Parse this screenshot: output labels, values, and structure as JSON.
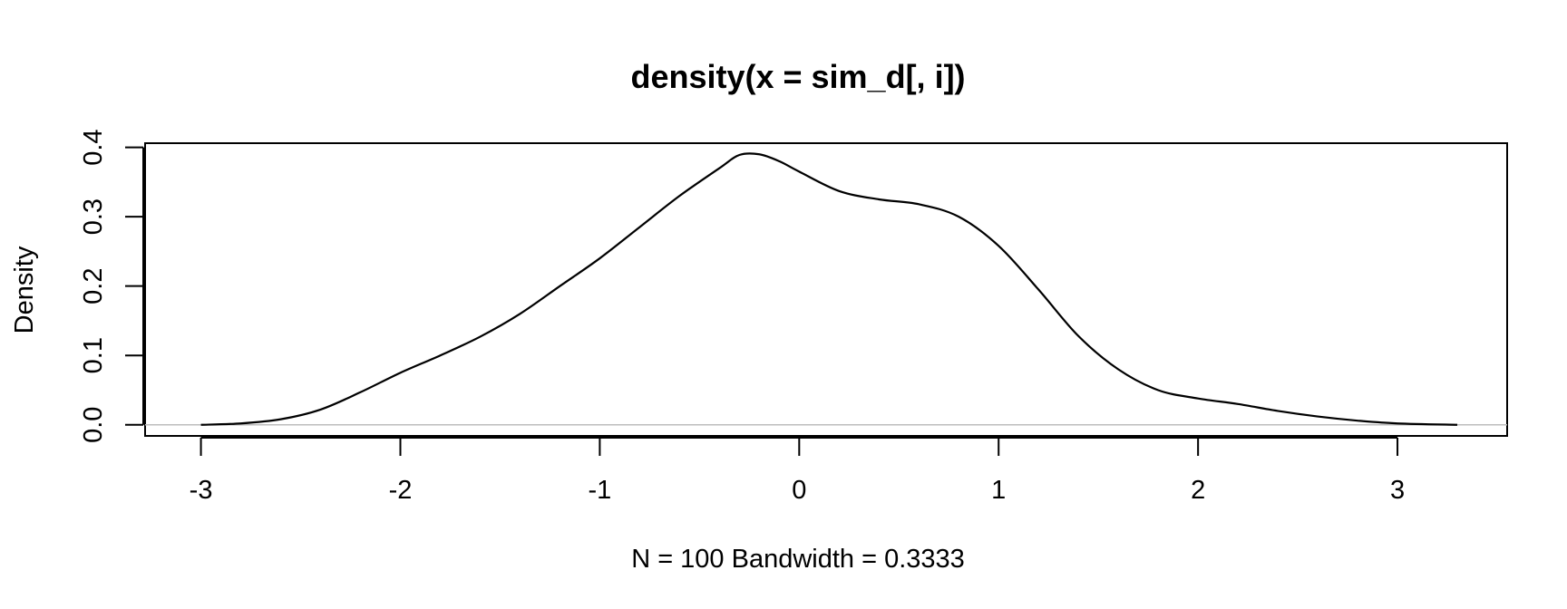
{
  "chart_data": {
    "type": "line",
    "title": "density(x = sim_d[, i])",
    "xlabel": "N = 100   Bandwidth = 0.3333",
    "ylabel": "Density",
    "xlim": [
      -3.28,
      3.55
    ],
    "ylim": [
      -0.016,
      0.406
    ],
    "x_ticks": [
      -3,
      -2,
      -1,
      0,
      1,
      2,
      3
    ],
    "y_ticks": [
      0.0,
      0.1,
      0.2,
      0.3,
      0.4
    ],
    "x_tick_labels": [
      "-3",
      "-2",
      "-1",
      "0",
      "1",
      "2",
      "3"
    ],
    "y_tick_labels": [
      "0.0",
      "0.1",
      "0.2",
      "0.3",
      "0.4"
    ],
    "baseline_color": "#bdbdbd",
    "line_color": "#000000",
    "series": [
      {
        "x": [
          -3.0,
          -2.8,
          -2.6,
          -2.4,
          -2.2,
          -2.0,
          -1.8,
          -1.6,
          -1.4,
          -1.2,
          -1.0,
          -0.8,
          -0.6,
          -0.4,
          -0.3,
          -0.2,
          -0.1,
          0.0,
          0.2,
          0.4,
          0.6,
          0.8,
          1.0,
          1.2,
          1.4,
          1.6,
          1.8,
          2.0,
          2.2,
          2.4,
          2.6,
          2.8,
          3.0,
          3.3
        ],
        "y": [
          0.0,
          0.002,
          0.008,
          0.022,
          0.047,
          0.075,
          0.1,
          0.127,
          0.16,
          0.2,
          0.24,
          0.285,
          0.33,
          0.37,
          0.389,
          0.39,
          0.38,
          0.365,
          0.337,
          0.325,
          0.318,
          0.3,
          0.258,
          0.195,
          0.128,
          0.08,
          0.05,
          0.038,
          0.03,
          0.02,
          0.012,
          0.006,
          0.002,
          0.0
        ]
      }
    ]
  }
}
